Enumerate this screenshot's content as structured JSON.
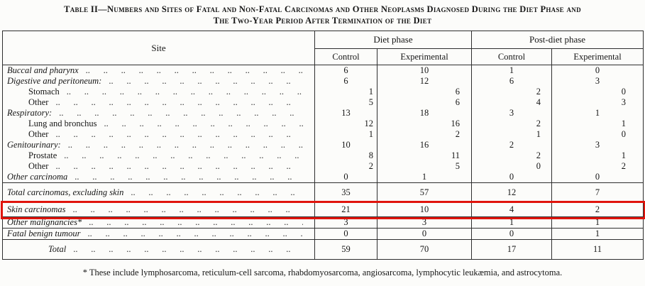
{
  "title": {
    "line1": "Table II—Numbers and Sites of Fatal and Non-Fatal Carcinomas and Other Neoplasms Diagnosed During the Diet Phase and",
    "line2": "The Two-Year Period After Termination of the Diet"
  },
  "table": {
    "site_header": "Site",
    "groups": [
      {
        "label": "Diet phase",
        "columns": [
          "Control",
          "Experimental"
        ]
      },
      {
        "label": "Post-diet phase",
        "columns": [
          "Control",
          "Experimental"
        ]
      }
    ],
    "leader_unit": "..",
    "highlight_color": "#e0140c",
    "rows": [
      {
        "label": "Buccal and pharynx",
        "italic": true,
        "indent": 0,
        "align": "main",
        "values": [
          "6",
          "10",
          "1",
          "0"
        ]
      },
      {
        "label": "Digestive and peritoneum:",
        "italic": true,
        "indent": 0,
        "align": "main",
        "values": [
          "6",
          "12",
          "6",
          "3"
        ]
      },
      {
        "label": "Stomach",
        "italic": false,
        "indent": 1,
        "align": "sub",
        "values": [
          "1",
          "6",
          "2",
          "0"
        ]
      },
      {
        "label": "Other",
        "italic": false,
        "indent": 1,
        "align": "sub",
        "values": [
          "5",
          "6",
          "4",
          "3"
        ]
      },
      {
        "label": "Respiratory:",
        "italic": true,
        "indent": 0,
        "align": "main",
        "values": [
          "13",
          "18",
          "3",
          "1"
        ]
      },
      {
        "label": "Lung and bronchus",
        "italic": false,
        "indent": 1,
        "align": "sub",
        "values": [
          "12",
          "16",
          "2",
          "1"
        ]
      },
      {
        "label": "Other",
        "italic": false,
        "indent": 1,
        "align": "sub",
        "values": [
          "1",
          "2",
          "1",
          "0"
        ]
      },
      {
        "label": "Genitourinary:",
        "italic": true,
        "indent": 0,
        "align": "main",
        "values": [
          "10",
          "16",
          "2",
          "3"
        ]
      },
      {
        "label": "Prostate",
        "italic": false,
        "indent": 1,
        "align": "sub",
        "values": [
          "8",
          "11",
          "2",
          "1"
        ]
      },
      {
        "label": "Other",
        "italic": false,
        "indent": 1,
        "align": "sub",
        "values": [
          "2",
          "5",
          "0",
          "2"
        ]
      },
      {
        "label": "Other carcinoma",
        "italic": true,
        "indent": 0,
        "align": "main",
        "values": [
          "0",
          "1",
          "0",
          "0"
        ],
        "line_below": true
      },
      {
        "label": "Total carcinomas, excluding skin",
        "italic": true,
        "indent": 0,
        "align": "main",
        "values": [
          "35",
          "57",
          "12",
          "7"
        ],
        "spaced": true,
        "line_below": true
      },
      {
        "label": "Skin carcinomas",
        "italic": true,
        "indent": 0,
        "align": "main",
        "values": [
          "21",
          "10",
          "4",
          "2"
        ],
        "highlight": true,
        "line_below": true
      },
      {
        "label": "Other malignancies*",
        "italic": true,
        "indent": 0,
        "align": "main",
        "values": [
          "3",
          "3",
          "1",
          "1"
        ],
        "line_below": true
      },
      {
        "label": "Fatal benign tumour",
        "italic": true,
        "indent": 0,
        "align": "main",
        "values": [
          "0",
          "0",
          "0",
          "1"
        ],
        "line_below": true
      },
      {
        "label": "Total",
        "italic": true,
        "indent": 2,
        "align": "main",
        "values": [
          "59",
          "70",
          "17",
          "11"
        ],
        "spaced": true
      }
    ]
  },
  "footnote": "* These include lymphosarcoma, reticulum-cell sarcoma, rhabdomyosarcoma, angiosarcoma, lymphocytic leukæmia, and astrocytoma."
}
